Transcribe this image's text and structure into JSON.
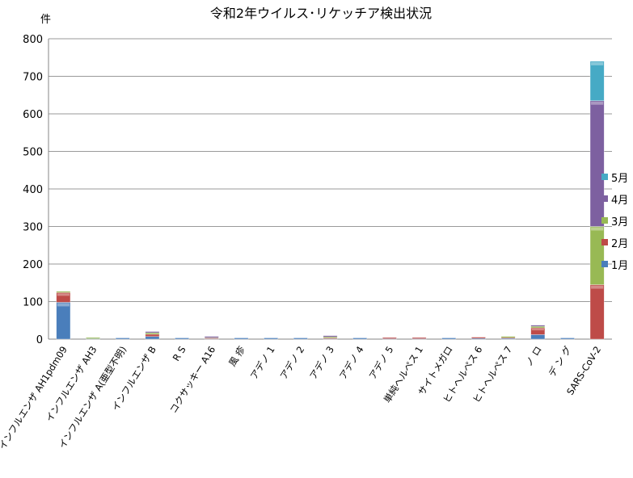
{
  "chart_data": {
    "type": "bar",
    "stacked": true,
    "title": "令和2年ウイルス･リケッチア検出状況",
    "ylabel": "件",
    "xlabel": "",
    "ylim": [
      0,
      800
    ],
    "yticks": [
      0,
      100,
      200,
      300,
      400,
      500,
      600,
      700,
      800
    ],
    "grid": true,
    "legend_position": "right",
    "categories": [
      "インフルエンザ AH1pdm09",
      "インフルエンザ AH3",
      "インフルエンザ A(亜型不明)",
      "インフルエンザ B",
      "R S",
      "コクサッキー A16",
      "風 疹",
      "アデノ 1",
      "アデノ 2",
      "アデノ 3",
      "アデノ 4",
      "アデノ 5",
      "単純ヘルペス 1",
      "サイトメガロ",
      "ヒトヘルペス 6",
      "ヒトヘルペス 7",
      "ノ ロ",
      "デ ン グ",
      "SARS-CoV-2"
    ],
    "series": [
      {
        "name": "1月",
        "color": "#4a7ebb",
        "values": [
          98,
          1,
          1,
          7,
          1,
          1,
          1,
          1,
          1,
          1,
          1,
          1,
          1,
          1,
          2,
          2,
          12,
          1,
          0
        ]
      },
      {
        "name": "2月",
        "color": "#be4b48",
        "values": [
          26,
          0,
          0,
          6,
          0,
          2,
          0,
          0,
          0,
          2,
          0,
          1,
          1,
          0,
          1,
          2,
          18,
          0,
          145
        ]
      },
      {
        "name": "3月",
        "color": "#98b954",
        "values": [
          2,
          2,
          0,
          4,
          0,
          1,
          0,
          0,
          0,
          3,
          0,
          0,
          0,
          0,
          0,
          1,
          4,
          0,
          155
        ]
      },
      {
        "name": "4月",
        "color": "#7d60a0",
        "values": [
          0,
          0,
          0,
          1,
          0,
          1,
          0,
          0,
          0,
          1,
          0,
          0,
          0,
          0,
          0,
          0,
          1,
          0,
          335
        ]
      },
      {
        "name": "5月",
        "color": "#46aac5",
        "values": [
          0,
          0,
          0,
          0,
          0,
          0,
          0,
          0,
          0,
          0,
          0,
          0,
          0,
          0,
          0,
          0,
          0,
          0,
          105
        ]
      }
    ]
  }
}
